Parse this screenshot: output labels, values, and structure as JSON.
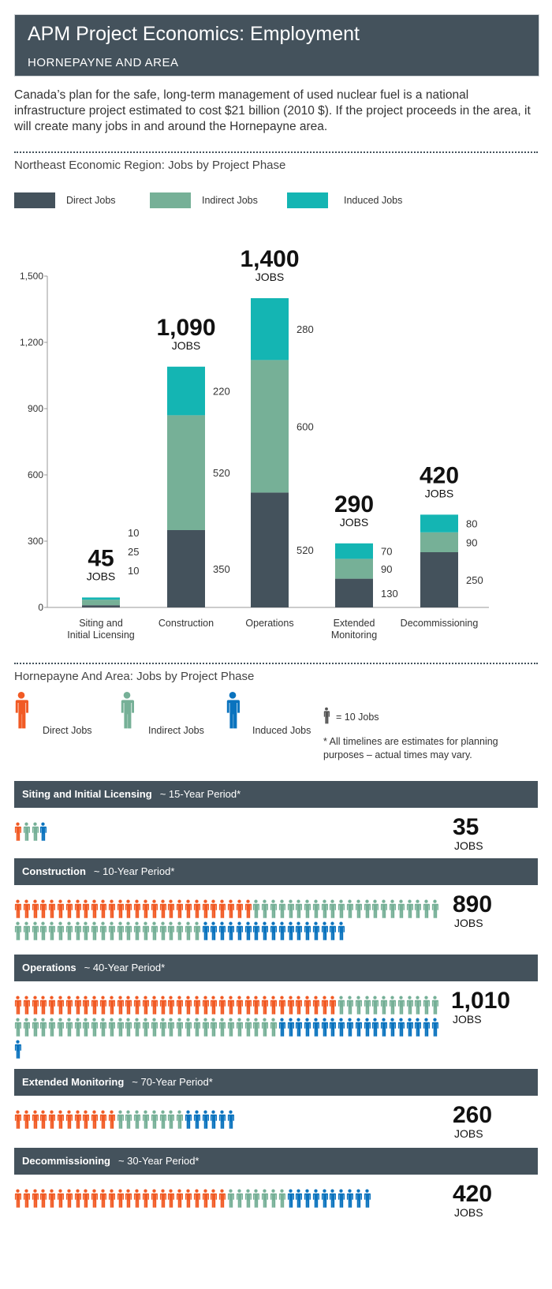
{
  "header": {
    "title": "APM Project Economics: Employment",
    "subtitle": "HORNEPAYNE AND AREA"
  },
  "intro": "Canada’s plan for the safe, long-term management of used nuclear fuel is a national infrastructure project estimated to cost $21 billion (2010 $). If the project proceeds in the area, it will create many jobs in and around the Hornepayne area.",
  "colors": {
    "direct_bar": "#44525c",
    "indirect_bar": "#76b097",
    "induced_bar": "#14b5b3",
    "direct_icon": "#f15a24",
    "indirect_icon": "#76b097",
    "induced_icon": "#0a73be"
  },
  "chart_data": {
    "type": "bar",
    "stacked": true,
    "title": "Northeast Economic Region: Jobs by Project Phase",
    "categories": [
      "Siting and Initial Licensing",
      "Construction",
      "Operations",
      "Extended Monitoring",
      "Decommissioning"
    ],
    "series": [
      {
        "name": "Direct Jobs",
        "values": [
          10,
          350,
          520,
          130,
          250
        ]
      },
      {
        "name": "Indirect Jobs",
        "values": [
          25,
          520,
          600,
          90,
          90
        ]
      },
      {
        "name": "Induced Jobs",
        "values": [
          10,
          220,
          280,
          70,
          80
        ]
      }
    ],
    "totals": [
      "45",
      "1,090",
      "1,400",
      "290",
      "420"
    ],
    "total_unit": "JOBS",
    "ylim": [
      0,
      1500
    ],
    "yticks": [
      "0",
      "300",
      "600",
      "900",
      "1,200",
      "1,500"
    ],
    "legend_placement": "top"
  },
  "local": {
    "title": "Hornepayne And Area: Jobs by Project Phase",
    "legend": {
      "direct": "Direct Jobs",
      "indirect": "Indirect Jobs",
      "induced": "Induced Jobs",
      "scale": "= 10 Jobs",
      "note": "* All timelines are estimates for planning purposes – actual times may vary."
    },
    "icon": "person-icon",
    "jobs_unit": "JOBS",
    "phases": [
      {
        "name": "Siting and Initial Licensing",
        "period": "~ 15-Year Period*",
        "total": "35",
        "icons": {
          "direct": 1,
          "indirect": 2,
          "induced": 1
        }
      },
      {
        "name": "Construction",
        "period": "~ 10-Year Period*",
        "total": "890",
        "icons": {
          "direct": 28,
          "indirect": 44,
          "induced": 17
        }
      },
      {
        "name": "Operations",
        "period": "~ 40-Year Period*",
        "total": "1,010",
        "icons": {
          "direct": 38,
          "indirect": 43,
          "induced": 20
        }
      },
      {
        "name": "Extended Monitoring",
        "period": "~ 70-Year Period*",
        "total": "260",
        "icons": {
          "direct": 12,
          "indirect": 8,
          "induced": 6
        }
      },
      {
        "name": "Decommissioning",
        "period": "~ 30-Year Period*",
        "total": "420",
        "icons": {
          "direct": 25,
          "indirect": 7,
          "induced": 10
        }
      }
    ]
  }
}
